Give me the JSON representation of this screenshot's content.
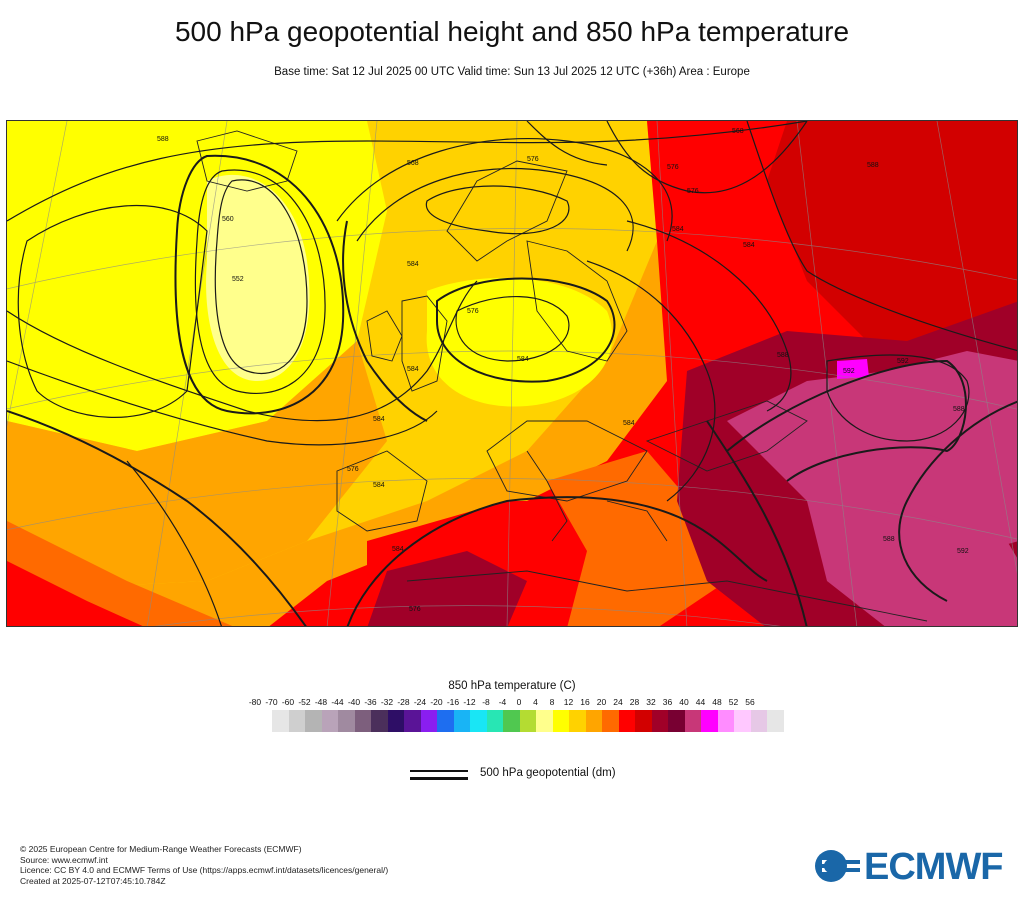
{
  "title": "500 hPa geopotential height and 850 hPa temperature",
  "subtitle": "Base time: Sat 12 Jul 2025 00 UTC Valid time: Sun 13 Jul 2025 12 UTC (+36h) Area : Europe",
  "map": {
    "region": "Europe",
    "contour_labels": [
      "588",
      "560",
      "576",
      "584",
      "552",
      "568",
      "576",
      "584",
      "576",
      "584",
      "588",
      "584",
      "568",
      "576",
      "584",
      "584",
      "584",
      "588",
      "592",
      "592",
      "584",
      "576",
      "588",
      "588",
      "592",
      "584",
      "576"
    ]
  },
  "legend": {
    "title": "850 hPa temperature (C)",
    "ticks": [
      "-80",
      "-70",
      "-60",
      "-52",
      "-48",
      "-44",
      "-40",
      "-36",
      "-32",
      "-28",
      "-24",
      "-20",
      "-16",
      "-12",
      "-8",
      "-4",
      "0",
      "4",
      "8",
      "12",
      "16",
      "20",
      "24",
      "28",
      "32",
      "36",
      "40",
      "44",
      "48",
      "52",
      "56"
    ],
    "colors": [
      "#e6e6e6",
      "#cfcfcf",
      "#b4b4b4",
      "#b9a3b9",
      "#a08aa0",
      "#7d5f7d",
      "#4b2f5b",
      "#2e0e66",
      "#5a1497",
      "#8a1ef0",
      "#1e6ef0",
      "#19b4f5",
      "#19e6f5",
      "#28e6b4",
      "#50c850",
      "#b4dc32",
      "#ffff8c",
      "#ffff00",
      "#ffd200",
      "#ffa500",
      "#ff6a00",
      "#ff0000",
      "#d20000",
      "#a00028",
      "#780032",
      "#c83778",
      "#ff00ff",
      "#ff8cff",
      "#ffc8ff",
      "#e6c8e6",
      "#e6e6e6"
    ]
  },
  "geo_legend_label": "500 hPa geopotential (dm)",
  "footer": {
    "line1": "© 2025 European Centre for Medium-Range Weather Forecasts (ECMWF)",
    "line2": "Source: www.ecmwf.int",
    "line3": "Licence: CC BY 4.0 and ECMWF Terms of Use (https://apps.ecmwf.int/datasets/licences/general/)",
    "line4": "Created at 2025-07-12T07:45:10.784Z"
  },
  "logo_text": "ECMWF"
}
